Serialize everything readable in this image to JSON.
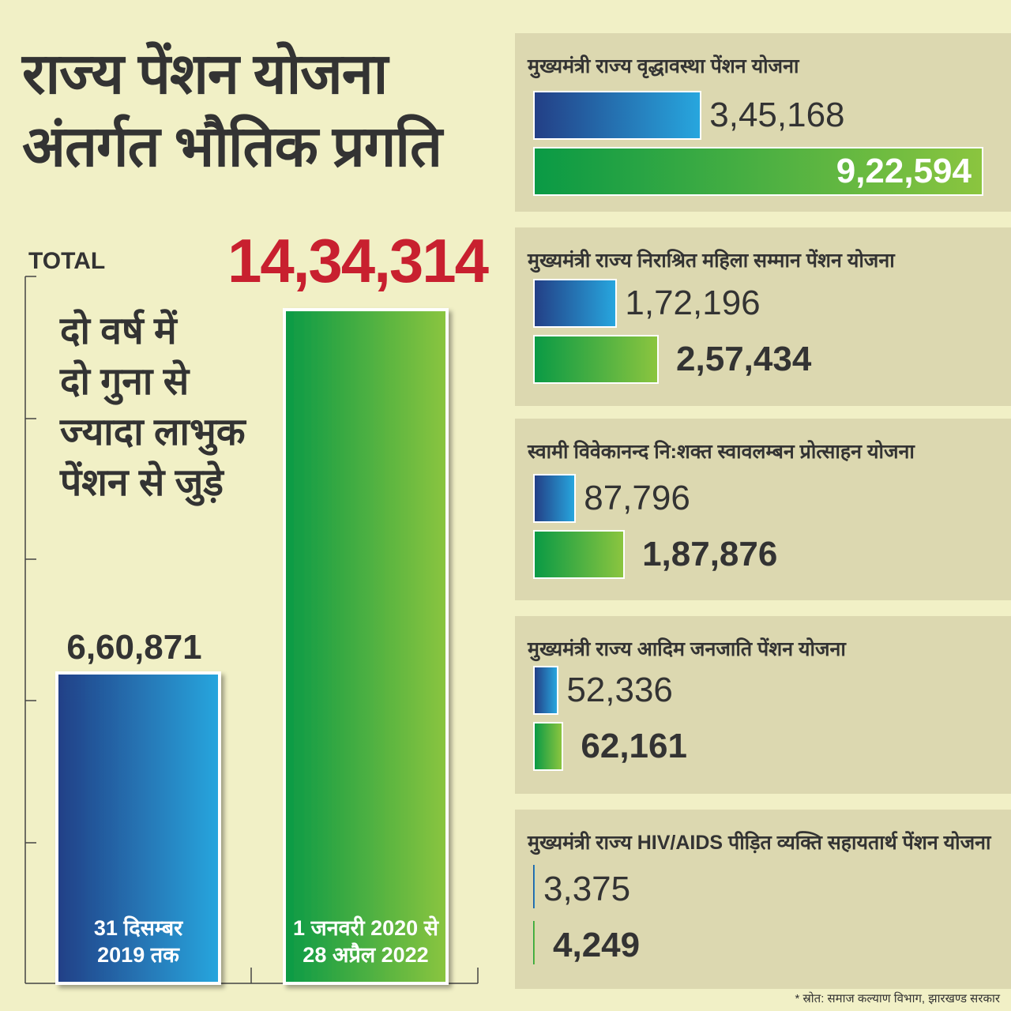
{
  "title": {
    "line1": "राज्य पेंशन योजना",
    "line2": "अंतर्गत भौतिक प्रगति"
  },
  "colors": {
    "background": "#f1f0c6",
    "panel": "#dcd8b0",
    "blue_start": "#233f86",
    "blue_end": "#27a6de",
    "green_start": "#0a9a45",
    "green_end": "#8bc53f",
    "total_red": "#c8202f"
  },
  "tagline": [
    "दो वर्ष में",
    "दो गुना से",
    "ज्यादा लाभुक",
    "पेंशन से जुड़े"
  ],
  "source": "* स्रोत: समाज कल्याण विभाग, झारखण्ड सरकार",
  "chart_data": [
    {
      "type": "bar",
      "title": "TOTAL",
      "categories": [
        "31 दिसम्बर 2019 तक",
        "1 जनवरी 2020 से 28 अप्रैल 2022"
      ],
      "category_lines": [
        [
          "31 दिसम्बर",
          "2019 तक"
        ],
        [
          "1 जनवरी 2020 से",
          "28 अप्रैल 2022"
        ]
      ],
      "values": [
        660871,
        1434314
      ],
      "value_labels": [
        "6,60,871",
        "14,34,314"
      ],
      "ylim": [
        0,
        1500000
      ],
      "grid": false
    },
    {
      "type": "bar",
      "orientation": "horizontal",
      "panels": [
        {
          "title": "मुख्यमंत्री राज्य वृद्धावस्था पेंशन योजना",
          "values": [
            345168,
            922594
          ],
          "labels": [
            "3,45,168",
            "9,22,594"
          ]
        },
        {
          "title": "मुख्यमंत्री राज्य निराश्रित महिला सम्मान पेंशन योजना",
          "values": [
            172196,
            257434
          ],
          "labels": [
            "1,72,196",
            "2,57,434"
          ]
        },
        {
          "title": "स्वामी विवेकानन्द नि:शक्त स्वावलम्बन प्रोत्साहन योजना",
          "values": [
            87796,
            187876
          ],
          "labels": [
            "87,796",
            "1,87,876"
          ]
        },
        {
          "title": "मुख्यमंत्री राज्य आदिम जनजाति पेंशन योजना",
          "values": [
            52336,
            62161
          ],
          "labels": [
            "52,336",
            "62,161"
          ]
        },
        {
          "title": "मुख्यमंत्री राज्य HIV/AIDS पीड़ित व्यक्ति सहायतार्थ पेंशन योजना",
          "values": [
            3375,
            4249
          ],
          "labels": [
            "3,375",
            "4,249"
          ]
        }
      ],
      "xlim": [
        0,
        922594
      ]
    }
  ]
}
